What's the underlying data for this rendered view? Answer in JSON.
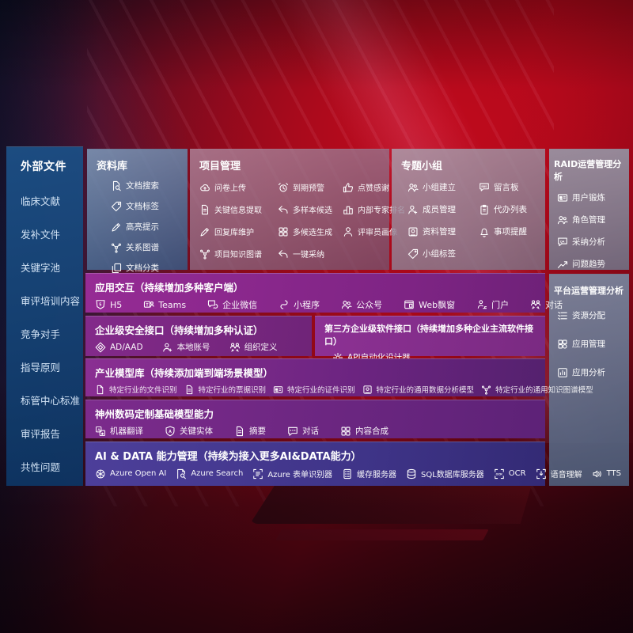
{
  "colors": {
    "background_red": "#a50818",
    "sidebar_blue": "#1c4e84",
    "band_purple": "#862d8c",
    "band_indigo": "#44388e",
    "panel_slate": "#8a8a9e"
  },
  "sidebar": {
    "title": "外部文件",
    "items": [
      "临床文献",
      "发补文件",
      "关键字池",
      "审评培训内容",
      "竞争对手",
      "指导原则",
      "标管中心标准",
      "审评报告",
      "共性问题"
    ]
  },
  "cards": [
    {
      "id": "library",
      "title": "资料库",
      "items": [
        {
          "icon": "doc-search",
          "label": "文档搜索"
        },
        {
          "icon": "tag",
          "label": "文档标签"
        },
        {
          "icon": "pen",
          "label": "高亮提示"
        },
        {
          "icon": "graph",
          "label": "关系图谱"
        },
        {
          "icon": "docs",
          "label": "文档分类"
        }
      ]
    },
    {
      "id": "project",
      "title": "项目管理",
      "items": [
        {
          "icon": "cloud-up",
          "label": "问卷上传"
        },
        {
          "icon": "alarm",
          "label": "到期预警"
        },
        {
          "icon": "thumb",
          "label": "点赞感谢"
        },
        {
          "icon": "doc-lines",
          "label": "关键信息提取"
        },
        {
          "icon": "reply",
          "label": "多样本候选"
        },
        {
          "icon": "podium",
          "label": "内部专家排名"
        },
        {
          "icon": "pen",
          "label": "回复库维护"
        },
        {
          "icon": "puzzle",
          "label": "多候选生成"
        },
        {
          "icon": "person",
          "label": "评审员画像"
        },
        {
          "icon": "graph",
          "label": "项目知识图谱"
        },
        {
          "icon": "reply",
          "label": "一键采纳"
        }
      ]
    },
    {
      "id": "topics",
      "title": "专题小组",
      "items": [
        {
          "icon": "people",
          "label": "小组建立"
        },
        {
          "icon": "bbs",
          "label": "留言板"
        },
        {
          "icon": "person-plus",
          "label": "成员管理"
        },
        {
          "icon": "clipboard",
          "label": "代办列表"
        },
        {
          "icon": "album",
          "label": "资料管理"
        },
        {
          "icon": "bell",
          "label": "事项提醒"
        },
        {
          "icon": "tag",
          "label": "小组标签"
        }
      ]
    },
    {
      "id": "raid",
      "title": "RAID运营管理分析",
      "items": [
        {
          "icon": "idcard",
          "label": "用户锻炼"
        },
        {
          "icon": "people",
          "label": "角色管理"
        },
        {
          "icon": "chat-qa",
          "label": "采纳分析"
        },
        {
          "icon": "trend",
          "label": "问题趋势"
        }
      ]
    },
    {
      "id": "platform",
      "title": "平台运营管理分析",
      "items": [
        {
          "icon": "list",
          "label": "资源分配"
        },
        {
          "icon": "grid",
          "label": "应用管理"
        },
        {
          "icon": "chart-box",
          "label": "应用分析"
        }
      ]
    }
  ],
  "bands": [
    {
      "id": "interaction",
      "title": "应用交互（持续增加多种客户端）",
      "items": [
        {
          "icon": "shield5",
          "label": "H5"
        },
        {
          "icon": "teams",
          "label": "Teams"
        },
        {
          "icon": "wechat",
          "label": "企业微信"
        },
        {
          "icon": "mini",
          "label": "小程序"
        },
        {
          "icon": "people",
          "label": "公众号"
        },
        {
          "icon": "window",
          "label": "Web飘窗"
        },
        {
          "icon": "portal",
          "label": "门户"
        },
        {
          "icon": "dialog",
          "label": "对话"
        }
      ]
    },
    {
      "id": "security",
      "title": "企业级安全接口（持续增加多种认证）",
      "items": [
        {
          "icon": "ad",
          "label": "AD/AAD"
        },
        {
          "icon": "person-plus",
          "label": "本地账号"
        },
        {
          "icon": "dialog",
          "label": "组织定义"
        }
      ]
    },
    {
      "id": "thirdparty",
      "title": "第三方企业级软件接口（持续增加多种企业主流软件接口）",
      "items": [
        {
          "icon": "gear",
          "label": "API自动化设计器"
        }
      ]
    },
    {
      "id": "models",
      "title": "产业模型库（持续添加端到端场景模型）",
      "items": [
        {
          "icon": "doc",
          "label": "特定行业的文件识别"
        },
        {
          "icon": "doc-lines",
          "label": "特定行业的票据识别"
        },
        {
          "icon": "idcard",
          "label": "特定行业的证件识别"
        },
        {
          "icon": "album",
          "label": "特定行业的通用数据分析模型"
        },
        {
          "icon": "graph",
          "label": "特定行业的通用知识图谱模型"
        }
      ]
    },
    {
      "id": "base",
      "title": "神州数码定制基础模型能力",
      "items": [
        {
          "icon": "translate",
          "label": "机器翻译"
        },
        {
          "icon": "shield-a",
          "label": "关键实体"
        },
        {
          "icon": "doc-lines",
          "label": "摘要"
        },
        {
          "icon": "chat",
          "label": "对话"
        },
        {
          "icon": "puzzle",
          "label": "内容合成"
        }
      ]
    },
    {
      "id": "aidata",
      "title": "AI & DATA 能力管理（持续为接入更多AI&DATA能力）",
      "items": [
        {
          "icon": "openai",
          "label": "Azure Open AI"
        },
        {
          "icon": "search-doc",
          "label": "Azure Search"
        },
        {
          "icon": "form",
          "label": "Azure 表单识别器"
        },
        {
          "icon": "server",
          "label": "缓存服务器"
        },
        {
          "icon": "db",
          "label": "SQL数据库服务器"
        },
        {
          "icon": "ocr",
          "label": "OCR"
        },
        {
          "icon": "voice",
          "label": "语音理解"
        },
        {
          "icon": "tts",
          "label": "TTS"
        }
      ]
    }
  ]
}
